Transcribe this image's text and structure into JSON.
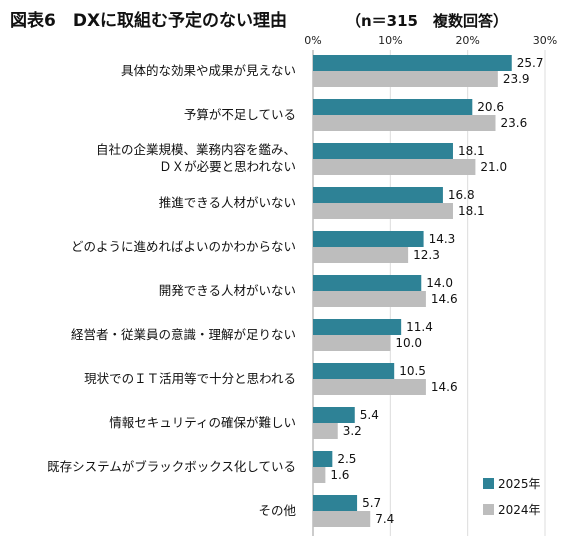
{
  "chart_data": {
    "type": "bar",
    "orientation": "horizontal",
    "title": "図表6　DXに取組む予定のない理由",
    "subtitle": "（n＝315　複数回答）",
    "xlim": [
      0,
      30
    ],
    "tick_labels": [
      "0%",
      "10%",
      "20%",
      "30%"
    ],
    "grid": true,
    "legend_position": "bottom-right",
    "categories": [
      "具体的な効果や成果が見えない",
      "予算が不足している",
      "自社の企業規模、業務内容を鑑み、\nＤＸが必要と思われない",
      "推進できる人材がいない",
      "どのように進めればよいのかわからない",
      "開発できる人材がいない",
      "経営者・従業員の意識・理解が足りない",
      "現状でのＩＴ活用等で十分と思われる",
      "情報セキュリティの確保が難しい",
      "既存システムがブラックボックス化している",
      "その他"
    ],
    "series": [
      {
        "name": "2025年",
        "color": "#2e8296",
        "values": [
          25.7,
          20.6,
          18.1,
          16.8,
          14.3,
          14.0,
          11.4,
          10.5,
          5.4,
          2.5,
          5.7
        ],
        "labels": [
          "25.7",
          "20.6",
          "18.1",
          "16.8",
          "14.3",
          "14.0",
          "11.4",
          "10.5",
          "5.4",
          "2.5",
          "5.7"
        ]
      },
      {
        "name": "2024年",
        "color": "#bdbdbd",
        "values": [
          23.9,
          23.6,
          21.0,
          18.1,
          12.3,
          14.6,
          10.0,
          14.6,
          3.2,
          1.6,
          7.4
        ],
        "labels": [
          "23.9",
          "23.6",
          "21.0",
          "18.1",
          "12.3",
          "14.6",
          "10.0",
          "14.6",
          "3.2",
          "1.6",
          "7.4"
        ]
      }
    ]
  }
}
